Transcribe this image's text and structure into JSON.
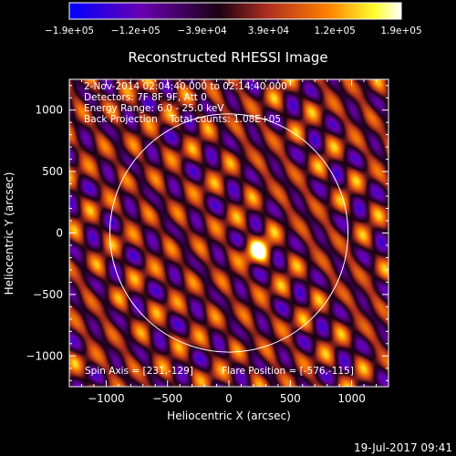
{
  "chart_data": {
    "type": "heatmap",
    "title": "Reconstructed RHESSI Image",
    "xlabel": "Heliocentric X (arcsec)",
    "ylabel": "Heliocentric Y (arcsec)",
    "xlim": [
      -1300,
      1300
    ],
    "ylim": [
      -1250,
      1250
    ],
    "x_ticks": [
      -1000,
      -500,
      0,
      500,
      1000
    ],
    "x_tick_labels": [
      "−1000",
      "−500",
      "0",
      "500",
      "1000"
    ],
    "y_ticks": [
      1000,
      500,
      0,
      -500,
      -1000
    ],
    "y_tick_labels": [
      "1000",
      "500",
      "0",
      "−500",
      "−1000"
    ],
    "colorbar": {
      "range": [
        -190000,
        190000
      ],
      "tick_labels": [
        "−1.9e+05",
        "−1.2e+05",
        "−3.9e+04",
        "3.9e+04",
        "1.2e+05",
        "1.9e+05"
      ],
      "colors": [
        "#0000ff",
        "#6a00b0",
        "#000000",
        "#b03020",
        "#ff8000",
        "#ffffff"
      ]
    },
    "annotations": [
      "2-Nov-2014 02:04:40.000 to 02:14:40.000",
      "Detectors: 7F 8F 9F, Att 0",
      "Energy Range: 6.0 - 25.0 keV",
      "Back Projection    Total counts: 1.08E+05"
    ],
    "spin_axis_text": "Spin Axis = [231,-129]",
    "flare_position_text": "Flare Position = [-576,-115]",
    "spin_axis": [
      231,
      -129
    ],
    "solar_limb_radius": 970,
    "fringe": {
      "angle_deg": 33,
      "spacing": 195,
      "cross_spacing": 330
    }
  },
  "footer": {
    "timestamp": "19-Jul-2017 09:41"
  }
}
